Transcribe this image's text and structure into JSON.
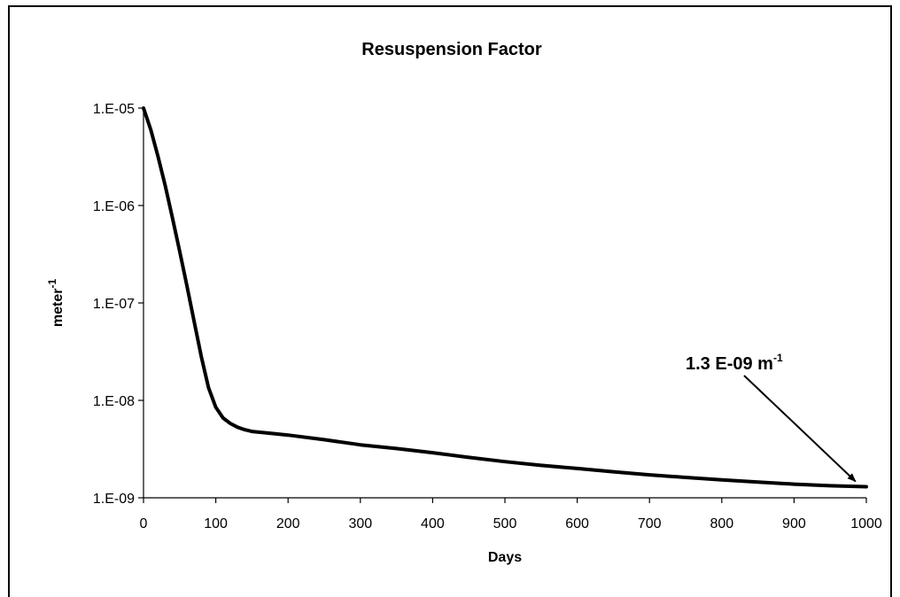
{
  "chart_data": {
    "type": "line",
    "title": "Resuspension Factor",
    "xlabel": "Days",
    "ylabel": {
      "base": "meter",
      "superscript": "-1"
    },
    "y_scale": "log",
    "xlim": [
      0,
      1000
    ],
    "ylim": [
      1e-09,
      1e-05
    ],
    "grid": false,
    "x_ticks": [
      0,
      100,
      200,
      300,
      400,
      500,
      600,
      700,
      800,
      900,
      1000
    ],
    "x_tick_labels": [
      "0",
      "100",
      "200",
      "300",
      "400",
      "500",
      "600",
      "700",
      "800",
      "900",
      "1000"
    ],
    "y_ticks": [
      1e-05,
      1e-06,
      1e-07,
      1e-08,
      1e-09
    ],
    "y_tick_labels": [
      "1.E-05",
      "1.E-06",
      "1.E-07",
      "1.E-08",
      "1.E-09"
    ],
    "series": [
      {
        "color": "#000000",
        "x": [
          0,
          10,
          20,
          30,
          40,
          50,
          60,
          70,
          80,
          90,
          100,
          110,
          120,
          130,
          140,
          150,
          175,
          200,
          250,
          300,
          350,
          400,
          450,
          500,
          550,
          600,
          650,
          700,
          750,
          800,
          850,
          900,
          950,
          1000
        ],
        "y": [
          1e-05,
          6e-06,
          3.2e-06,
          1.6e-06,
          7.5e-07,
          3.4e-07,
          1.5e-07,
          6.5e-08,
          2.8e-08,
          1.35e-08,
          8.5e-09,
          6.6e-09,
          5.8e-09,
          5.3e-09,
          5e-09,
          4.8e-09,
          4.6e-09,
          4.4e-09,
          3.95e-09,
          3.5e-09,
          3.2e-09,
          2.9e-09,
          2.6e-09,
          2.35e-09,
          2.15e-09,
          2e-09,
          1.85e-09,
          1.72e-09,
          1.62e-09,
          1.53e-09,
          1.45e-09,
          1.38e-09,
          1.33e-09,
          1.3e-09
        ]
      }
    ],
    "annotation": {
      "text": "1.3 E-09 m",
      "superscript": "-1",
      "arrow_target": {
        "x": 985,
        "y": 1.3e-09
      }
    }
  }
}
